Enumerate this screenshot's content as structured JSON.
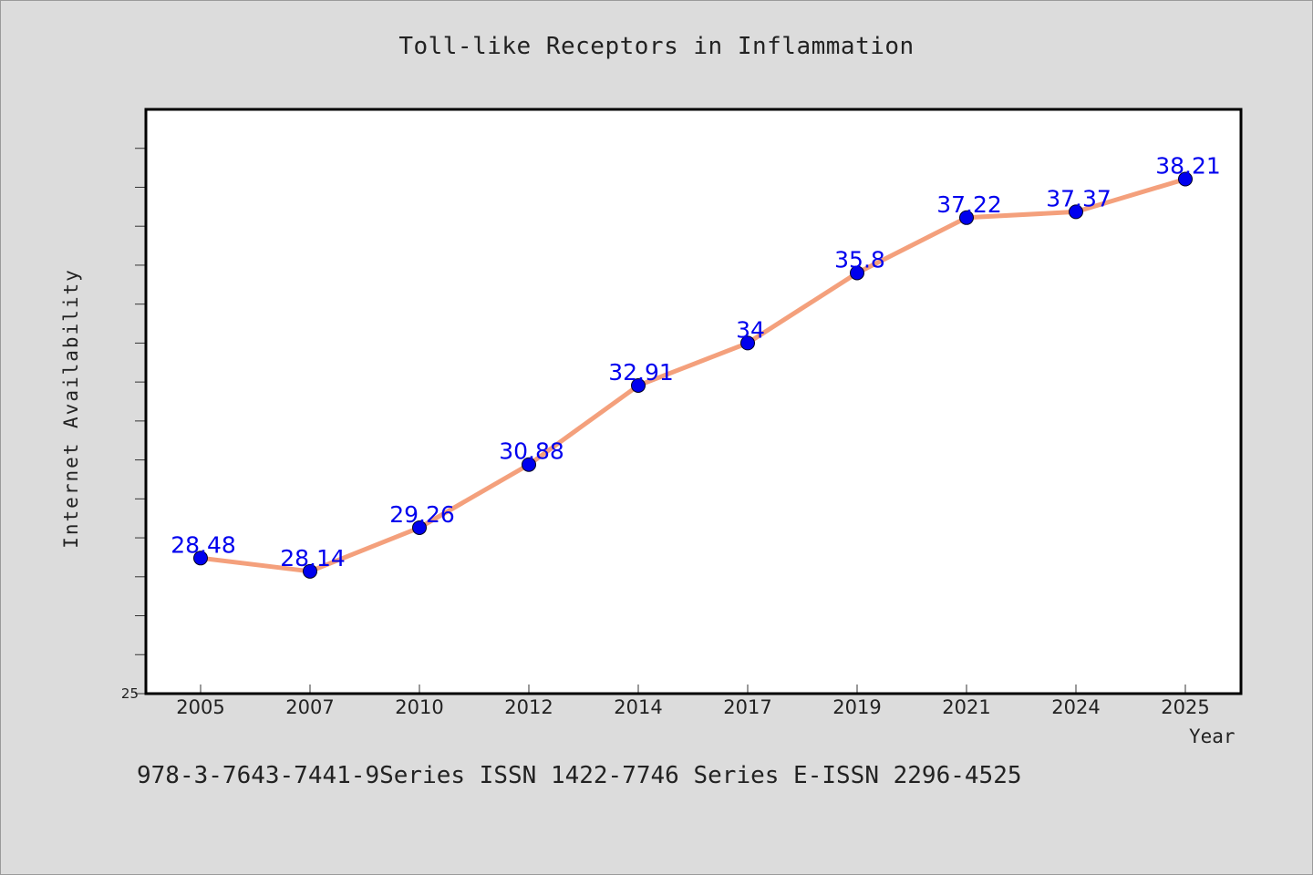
{
  "chart_data": {
    "type": "line",
    "title": "Toll-like Receptors in Inflammation",
    "xlabel": "Year",
    "ylabel": "Internet Availability",
    "categories": [
      "2005",
      "2007",
      "2010",
      "2012",
      "2014",
      "2017",
      "2019",
      "2021",
      "2024",
      "2025"
    ],
    "series": [
      {
        "values": [
          28.48,
          28.14,
          29.26,
          30.88,
          32.91,
          34,
          35.8,
          37.22,
          37.37,
          38.21
        ],
        "labels": [
          "28.48",
          "28.14",
          "29.26",
          "30.88",
          "32.91",
          "34",
          "35.8",
          "37.22",
          "37.37",
          "38.21"
        ],
        "line_color": "#f4a07c",
        "marker_color": "#0000ee",
        "label_color": "#0000ee"
      }
    ],
    "ylim": [
      25,
      40
    ],
    "yticks_labeled": [
      "25"
    ],
    "grid": false,
    "legend": "none"
  },
  "footnote": "978-3-7643-7441-9Series ISSN 1422-7746 Series E-ISSN 2296-4525"
}
